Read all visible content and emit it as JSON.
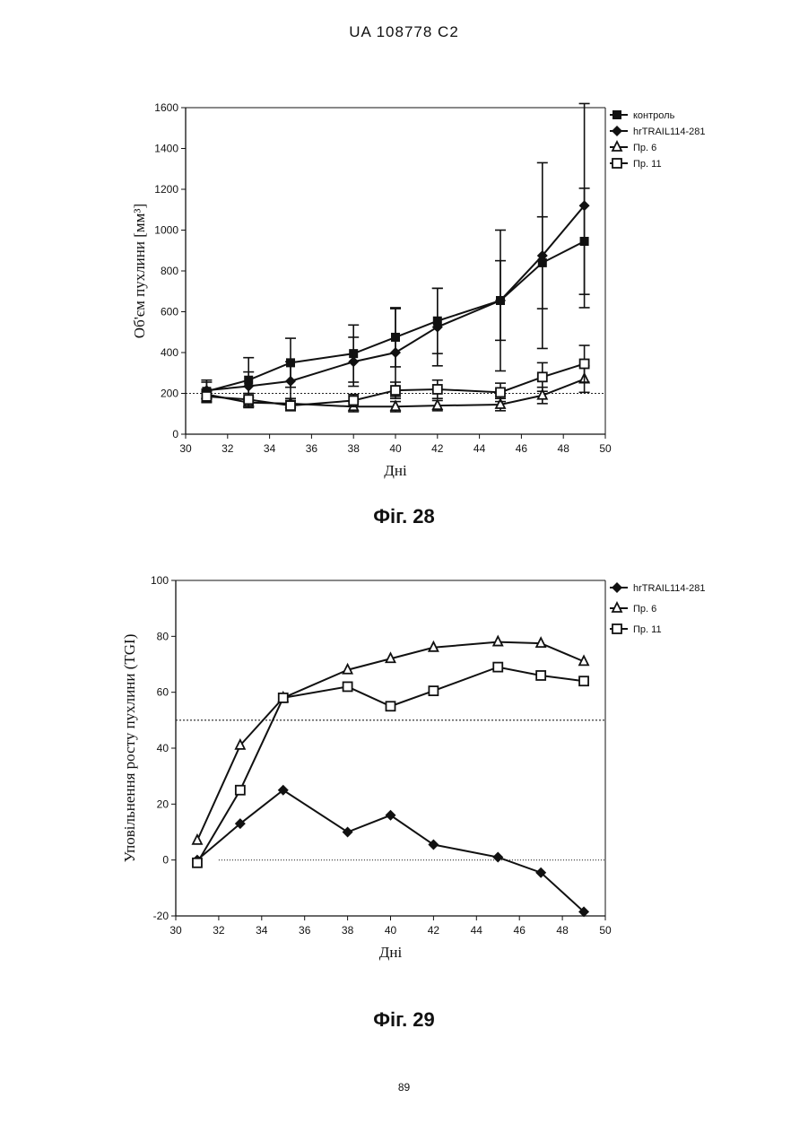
{
  "header": {
    "doc_id": "UA   108778   C2"
  },
  "page_number": "89",
  "chart_data": [
    {
      "type": "line",
      "caption": "Фіг. 28",
      "xlabel": "Дні",
      "ylabel": "Об'єм пухлини [мм³]",
      "xlim": [
        30,
        50
      ],
      "ylim": [
        0,
        1600
      ],
      "xticks": [
        "30",
        "32",
        "34",
        "36",
        "38",
        "40",
        "42",
        "44",
        "46",
        "48",
        "50"
      ],
      "yticks": [
        "0",
        "200",
        "400",
        "600",
        "800",
        "1000",
        "1200",
        "1400",
        "1600"
      ],
      "reference_line": 200,
      "legend_position": "top-right",
      "x": [
        31,
        33,
        35,
        38,
        40,
        42,
        45,
        47,
        49
      ],
      "series": [
        {
          "name": "контроль",
          "marker": "square-filled",
          "values": [
            210,
            265,
            350,
            395,
            475,
            555,
            655,
            840,
            945
          ],
          "errors": [
            55,
            110,
            120,
            140,
            145,
            160,
            345,
            225,
            260
          ]
        },
        {
          "name": "hrTRAIL114-281",
          "marker": "diamond-filled",
          "values": [
            215,
            235,
            260,
            355,
            400,
            525,
            655,
            875,
            1120
          ],
          "errors": [
            40,
            70,
            95,
            120,
            215,
            190,
            195,
            455,
            500
          ]
        },
        {
          "name": "Пр. 6",
          "marker": "triangle-open",
          "values": [
            195,
            155,
            150,
            135,
            135,
            140,
            145,
            190,
            270
          ],
          "errors": [
            25,
            25,
            25,
            25,
            25,
            25,
            30,
            40,
            65
          ]
        },
        {
          "name": "Пр. 11",
          "marker": "square-open",
          "values": [
            185,
            170,
            140,
            165,
            215,
            220,
            205,
            280,
            345
          ],
          "errors": [
            25,
            30,
            25,
            30,
            40,
            45,
            45,
            70,
            90
          ]
        }
      ]
    },
    {
      "type": "line",
      "caption": "Фіг. 29",
      "xlabel": "Дні",
      "ylabel": "Уповільнення росту пухлини (TGI)",
      "xlim": [
        30,
        50
      ],
      "ylim": [
        -20,
        100
      ],
      "xticks": [
        "30",
        "32",
        "34",
        "36",
        "38",
        "40",
        "42",
        "44",
        "46",
        "48",
        "50"
      ],
      "yticks": [
        "-20",
        "0",
        "20",
        "40",
        "60",
        "80",
        "100"
      ],
      "reference_lines": [
        50,
        0
      ],
      "legend_position": "top-right",
      "x": [
        31,
        33,
        35,
        38,
        40,
        42,
        45,
        47,
        49
      ],
      "series": [
        {
          "name": "hrTRAIL114-281",
          "marker": "diamond-filled",
          "values": [
            0,
            13,
            25,
            10,
            16,
            5.5,
            1,
            -4.5,
            -18.5
          ]
        },
        {
          "name": "Пр. 6",
          "marker": "triangle-open",
          "values": [
            7,
            41,
            58,
            68,
            72,
            76,
            78,
            77.5,
            71
          ]
        },
        {
          "name": "Пр. 11",
          "marker": "square-open",
          "values": [
            -1,
            25,
            58,
            62,
            55,
            60.5,
            69,
            66,
            64
          ]
        }
      ]
    }
  ]
}
